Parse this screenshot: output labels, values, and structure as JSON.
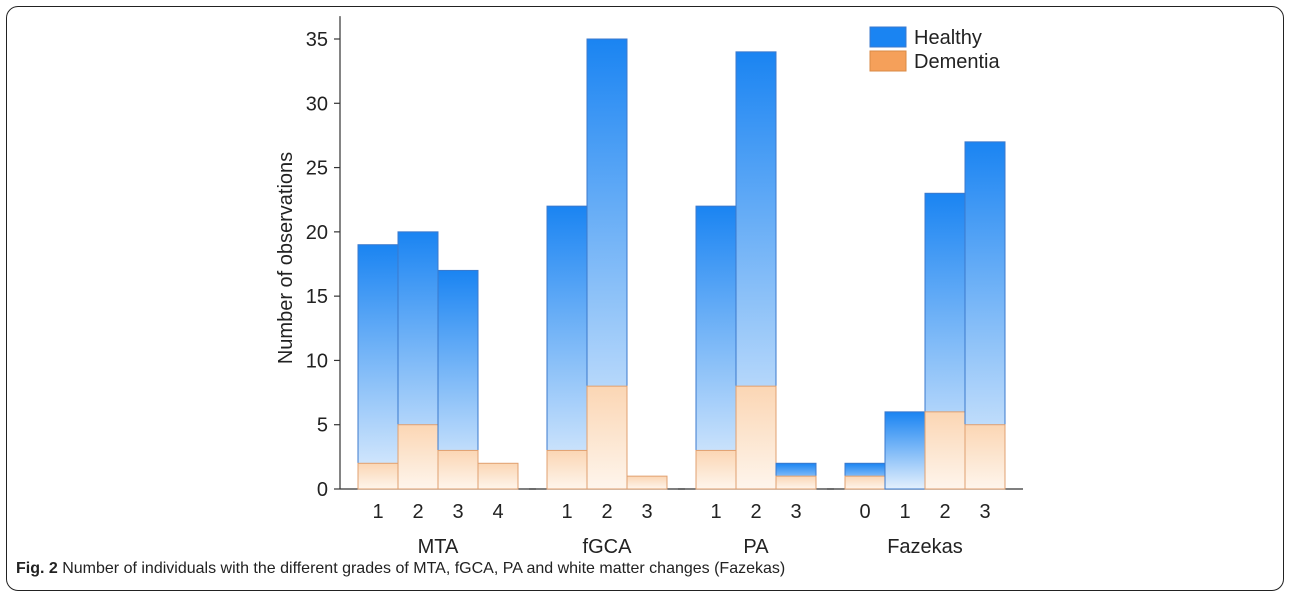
{
  "chart_data": {
    "type": "bar",
    "ylabel": "Number of observations",
    "ylim": [
      0,
      36
    ],
    "yticks": [
      0,
      5,
      10,
      15,
      20,
      25,
      30,
      35
    ],
    "grid": false,
    "legend": "top-right",
    "colors": {
      "Healthy": "#1a84f2",
      "Dementia": "#f5a05a"
    },
    "groups": [
      {
        "name": "MTA",
        "categories": [
          "1",
          "2",
          "3",
          "4"
        ],
        "series": [
          {
            "name": "Healthy",
            "values": [
              19,
              20,
              17,
              0
            ]
          },
          {
            "name": "Dementia",
            "values": [
              2,
              5,
              3,
              2
            ]
          }
        ]
      },
      {
        "name": "fGCA",
        "categories": [
          "1",
          "2",
          "3"
        ],
        "series": [
          {
            "name": "Healthy",
            "values": [
              22,
              35,
              0
            ]
          },
          {
            "name": "Dementia",
            "values": [
              3,
              8,
              1
            ]
          }
        ]
      },
      {
        "name": "PA",
        "categories": [
          "1",
          "2",
          "3"
        ],
        "series": [
          {
            "name": "Healthy",
            "values": [
              22,
              34,
              2
            ]
          },
          {
            "name": "Dementia",
            "values": [
              3,
              8,
              1
            ]
          }
        ]
      },
      {
        "name": "Fazekas",
        "categories": [
          "0",
          "1",
          "2",
          "3"
        ],
        "series": [
          {
            "name": "Healthy",
            "values": [
              2,
              6,
              23,
              27
            ]
          },
          {
            "name": "Dementia",
            "values": [
              1,
              0,
              6,
              5
            ]
          }
        ]
      }
    ]
  },
  "caption": {
    "label": "Fig. 2",
    "text": " Number of individuals with the different grades of MTA, fGCA, PA and white matter changes (Fazekas)"
  }
}
